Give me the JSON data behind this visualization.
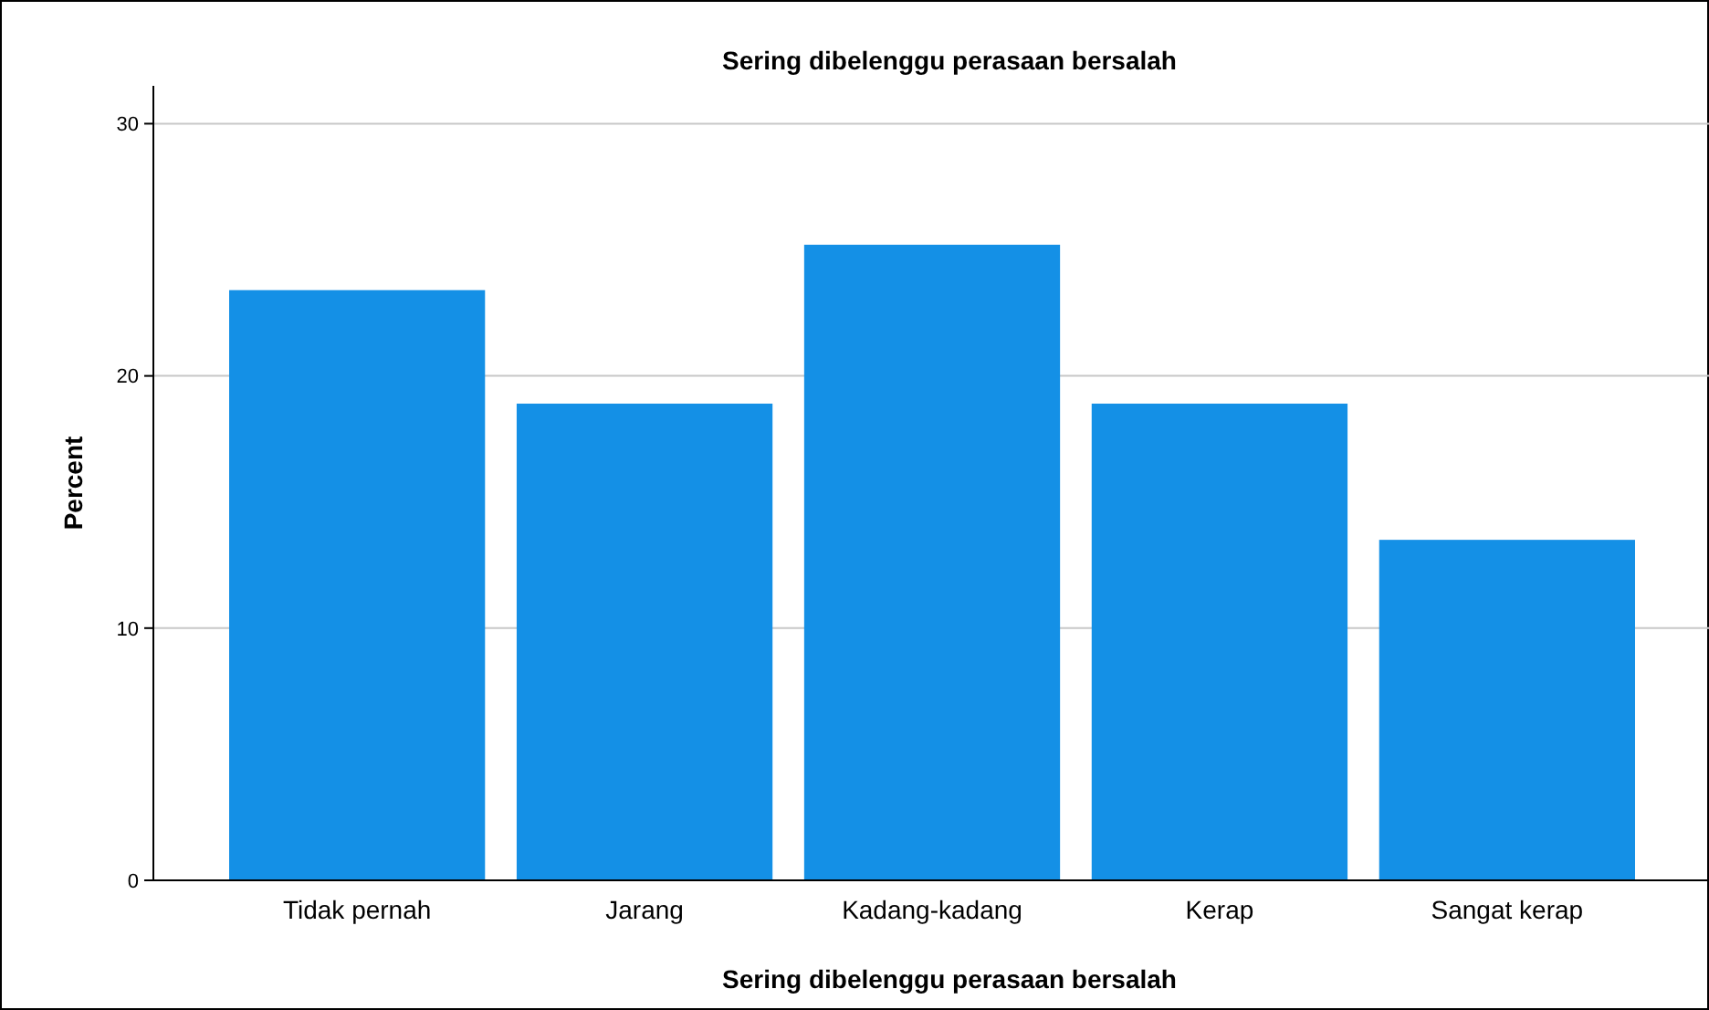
{
  "chart_data": {
    "type": "bar",
    "title": "Sering dibelenggu perasaan bersalah",
    "xlabel": "Sering dibelenggu perasaan bersalah",
    "ylabel": "Percent",
    "categories": [
      "Tidak pernah",
      "Jarang",
      "Kadang-kadang",
      "Kerap",
      "Sangat kerap"
    ],
    "values": [
      23.4,
      18.9,
      25.2,
      18.9,
      13.5
    ],
    "color": "#1490e6",
    "ylim": [
      0,
      31.5
    ],
    "yticks": [
      0,
      10,
      20,
      30
    ],
    "grid": "y"
  }
}
